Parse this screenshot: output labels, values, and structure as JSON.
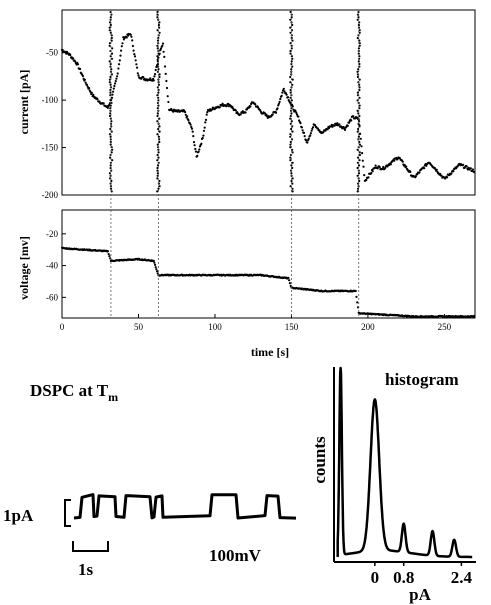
{
  "current_panel": {
    "type": "line",
    "ylabel": "current [pA]",
    "y_ticks": [
      {
        "value": -50,
        "label": "-50"
      },
      {
        "value": -100,
        "label": "-100"
      },
      {
        "value": -150,
        "label": "-150"
      },
      {
        "value": -200,
        "label": "-200"
      }
    ],
    "xlim": [
      0,
      270
    ],
    "ylim": [
      -200,
      -5
    ]
  },
  "voltage_panel": {
    "type": "line",
    "ylabel": "voltage [mv]",
    "xlabel": "time [s]",
    "x_ticks": [
      {
        "value": 0,
        "label": "0"
      },
      {
        "value": 50,
        "label": "50"
      },
      {
        "value": 100,
        "label": "100"
      },
      {
        "value": 150,
        "label": "150"
      },
      {
        "value": 200,
        "label": "200"
      },
      {
        "value": 250,
        "label": "250"
      }
    ],
    "y_ticks": [
      {
        "value": -20,
        "label": "-20"
      },
      {
        "value": -40,
        "label": "-40"
      },
      {
        "value": -60,
        "label": "-60"
      }
    ],
    "xlim": [
      0,
      270
    ],
    "ylim": [
      -73,
      -5
    ]
  },
  "event_markers_s": [
    32,
    63,
    150,
    194
  ],
  "inset_trace": {
    "title_main": "DSPC at T",
    "title_sub": "m",
    "scale_current": "1pA",
    "scale_time": "1s",
    "voltage_label": "100mV"
  },
  "histogram": {
    "title": "histogram",
    "ylabel": "counts",
    "xlabel": "pA",
    "x_ticks": [
      {
        "value": 0,
        "label": "0"
      },
      {
        "value": 0.8,
        "label": "0.8"
      },
      {
        "value": 2.4,
        "label": "2.4"
      }
    ],
    "xlim": [
      -1.05,
      2.75
    ],
    "peaks": [
      {
        "x": -0.95,
        "height": 1.0
      },
      {
        "x": 0.0,
        "height": 0.8
      },
      {
        "x": 0.8,
        "height": 0.15
      },
      {
        "x": 1.6,
        "height": 0.13
      },
      {
        "x": 2.2,
        "height": 0.09
      }
    ]
  },
  "chart_data": [
    {
      "type": "line",
      "ylabel": "current [pA]",
      "xlim": [
        0,
        270
      ],
      "ylim": [
        -200,
        -5
      ],
      "series": [
        {
          "x": [
            0,
            5,
            10,
            15,
            20,
            25,
            30,
            33,
            36,
            40,
            45,
            50,
            55,
            60,
            63,
            66,
            70,
            75,
            80,
            85,
            88,
            92,
            95,
            100,
            105,
            110,
            115,
            120,
            125,
            130,
            135,
            140,
            145,
            150,
            155,
            160,
            165,
            170,
            175,
            180,
            185,
            190,
            194,
            198,
            205,
            210,
            220,
            230,
            240,
            250,
            260,
            270
          ],
          "y": [
            -47,
            -52,
            -62,
            -80,
            -95,
            -102,
            -108,
            -95,
            -75,
            -35,
            -30,
            -75,
            -78,
            -78,
            -55,
            -40,
            -110,
            -112,
            -112,
            -130,
            -160,
            -140,
            -112,
            -108,
            -105,
            -105,
            -115,
            -112,
            -102,
            -112,
            -118,
            -112,
            -88,
            -105,
            -120,
            -145,
            -125,
            -135,
            -128,
            -125,
            -130,
            -118,
            -120,
            -185,
            -170,
            -172,
            -160,
            -182,
            -165,
            -183,
            -168,
            -175
          ]
        }
      ]
    },
    {
      "type": "line",
      "ylabel": "voltage [mv]",
      "xlabel": "time [s]",
      "xlim": [
        0,
        270
      ],
      "ylim": [
        -73,
        -5
      ],
      "series": [
        {
          "x": [
            0,
            30,
            32,
            50,
            60,
            63,
            100,
            130,
            148,
            150,
            170,
            192,
            194,
            230,
            270
          ],
          "y": [
            -29,
            -31,
            -37,
            -36,
            -37,
            -46,
            -46,
            -46,
            -48,
            -54,
            -56,
            -56,
            -70,
            -72,
            -72
          ]
        }
      ]
    },
    {
      "type": "line",
      "xlabel": "pA",
      "ylabel": "counts",
      "xlim": [
        -1.05,
        2.75
      ],
      "series": [
        {
          "x": [
            -0.95,
            -0.6,
            -0.3,
            0.0,
            0.3,
            0.6,
            0.8,
            1.2,
            1.6,
            2.0,
            2.2,
            2.6
          ],
          "y": [
            1.0,
            0.05,
            0.07,
            0.8,
            0.06,
            0.04,
            0.15,
            0.04,
            0.13,
            0.03,
            0.09,
            0.02
          ]
        }
      ]
    }
  ]
}
